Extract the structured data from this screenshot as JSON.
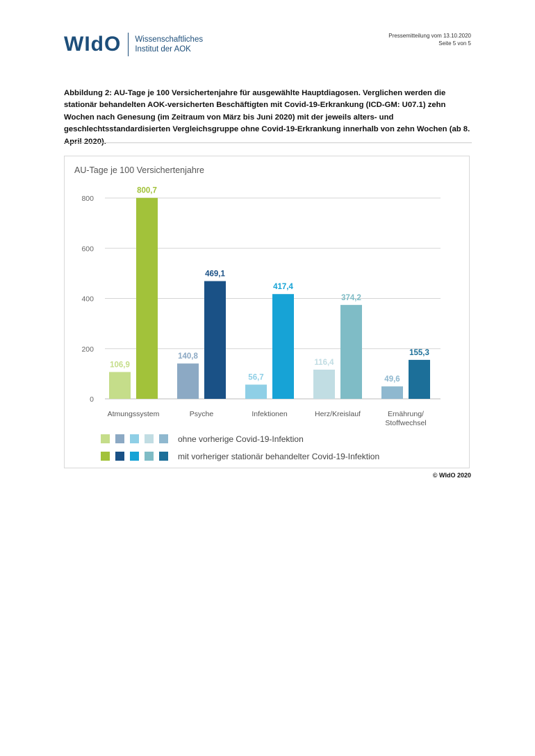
{
  "header": {
    "logo_mark": "WIdO",
    "logo_line1": "Wissenschaftliches",
    "logo_line2": "Institut der AOK",
    "press_line1": "Pressemitteilung vom 13.10.2020",
    "press_line2": "Seite 5 von 5"
  },
  "caption": "Abbildung 2: AU-Tage je 100 Versichertenjahre für ausgewählte Hauptdiagosen. Verglichen werden die stationär behandelten AOK-versicherten Beschäftigten mit Covid-19-Erkrankung (ICD-GM: U07.1) zehn Wochen nach Genesung (im Zeitraum von März bis Juni 2020) mit der jeweils alters- und geschlechtsstandardisierten Vergleichsgruppe ohne Covid-19-Erkrankung innerhalb von zehn Wochen (ab 8. April 2020).",
  "copyright": "© WIdO 2020",
  "chart_data": {
    "type": "bar",
    "title": "AU-Tage je 100 Versichertenjahre",
    "categories": [
      "Atmungssystem",
      "Psyche",
      "Infektionen",
      "Herz/Kreislauf",
      "Ernährung/ Stoffwechsel"
    ],
    "series": [
      {
        "name": "ohne vorherige Covid-19-Infektion",
        "values": [
          106.9,
          140.8,
          56.7,
          116.4,
          49.6
        ],
        "labels": [
          "106,9",
          "140,8",
          "56,7",
          "116,4",
          "49,6"
        ],
        "colors": [
          "#c5dd8a",
          "#8ca9c4",
          "#8fcfe6",
          "#c1dde3",
          "#8fb8cf"
        ]
      },
      {
        "name": "mit vorheriger stationär behandelter Covid-19-Infektion",
        "values": [
          800.7,
          469.1,
          417.4,
          374.2,
          155.3
        ],
        "labels": [
          "800,7",
          "469,1",
          "417,4",
          "374,2",
          "155,3"
        ],
        "colors": [
          "#a2c23a",
          "#1a5186",
          "#17a3d6",
          "#7fbcc6",
          "#1c6f99"
        ]
      }
    ],
    "y_ticks": [
      "0",
      "200",
      "400",
      "600",
      "800"
    ],
    "ylim": [
      0,
      850
    ],
    "grid": true,
    "legend_placement": "bottom"
  }
}
